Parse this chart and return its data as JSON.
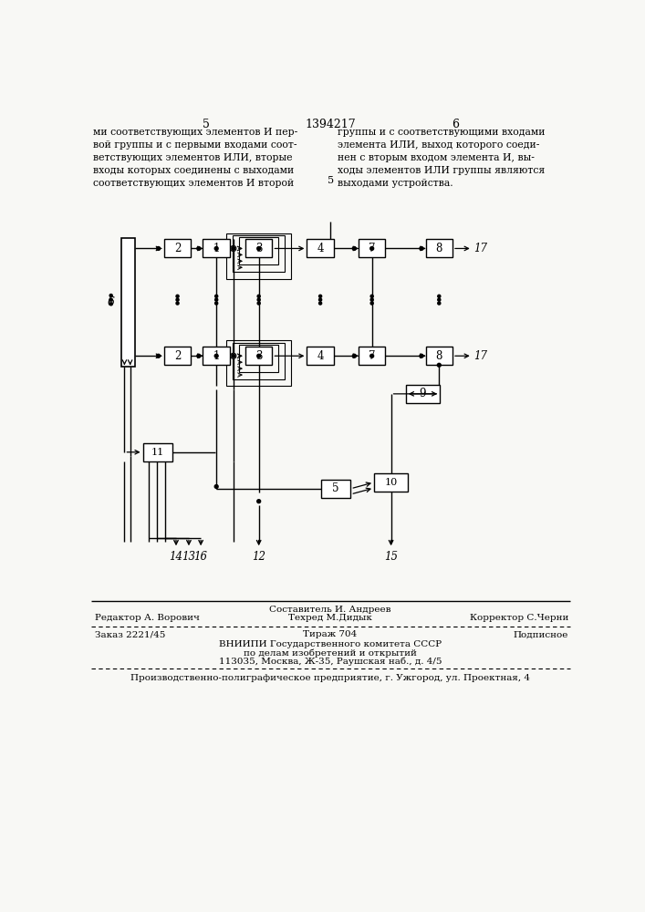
{
  "page_num_left": "5",
  "page_num_center": "1394217",
  "page_num_right": "6",
  "text_left": "ми соответствующих элементов И пер-\nвой группы и с первыми входами соот-\nветствующих элементов ИЛИ, вторые\nвходы которых соединены с выходами\nсоответствующих элементов И второй",
  "text_right": "группы и с соответствующими входами\nэлемента ИЛИ, выход которого соеди-\nнен с вторым входом элемента И, вы-\nходы элементов ИЛИ группы являются\nвыходами устройства.",
  "text_mid_marker": "5",
  "footer_line1_left": "Редактор А. Ворович",
  "footer_line1_center_top": "Составитель И. Андреев",
  "footer_line1_center_bot": "Техред М.Дидык",
  "footer_line1_right": "Корректор С.Черни",
  "footer_line2_left": "Заказ 2221/45",
  "footer_line2_center": "Тираж 704",
  "footer_line2_right": "Подписное",
  "footer_line3": "ВНИИПИ Государственного комитета СССР",
  "footer_line4": "по делам изобретений и открытий",
  "footer_line5": "113035, Москва, Ж-35, Раушская наб., д. 4/5",
  "footer_line6": "Производственно-полиграфическое предприятие, г. Ужгород, ул. Проектная, 4",
  "bg_color": "#f8f8f5"
}
